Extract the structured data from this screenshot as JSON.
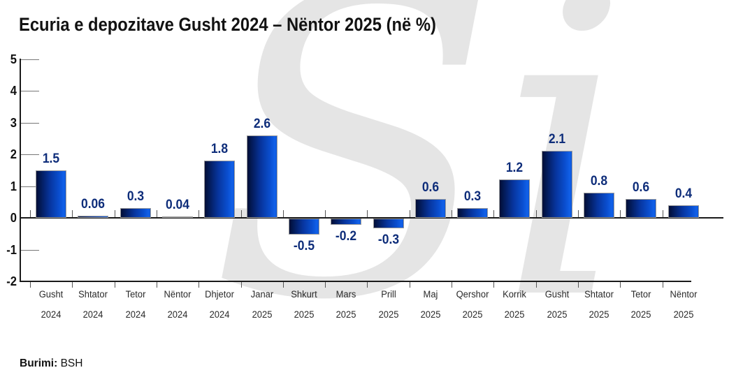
{
  "title": "Ecuria e depozitave Gusht 2024 – Nëntor 2025 (në %)",
  "watermark_text": "Si",
  "source": {
    "label": "Burimi:",
    "value": "BSH"
  },
  "colors": {
    "bar_gradient_dark": "#010e36",
    "bar_gradient_light": "#1161ea",
    "value_label": "#0e2d7a",
    "axis": "#1a1a1a",
    "watermark": "#e5e5e5",
    "background": "#ffffff"
  },
  "chart_data": {
    "type": "bar",
    "title": "Ecuria e depozitave Gusht 2024 – Nëntor 2025 (në %)",
    "xlabel": "",
    "ylabel": "",
    "ylim": [
      -2,
      5
    ],
    "y_ticks": [
      5,
      4,
      3,
      2,
      1,
      0,
      -1,
      -2
    ],
    "grid": false,
    "legend": "none",
    "categories": [
      {
        "month": "Gusht",
        "year": "2024"
      },
      {
        "month": "Shtator",
        "year": "2024"
      },
      {
        "month": "Tetor",
        "year": "2024"
      },
      {
        "month": "Nëntor",
        "year": "2024"
      },
      {
        "month": "Dhjetor",
        "year": "2024"
      },
      {
        "month": "Janar",
        "year": "2025"
      },
      {
        "month": "Shkurt",
        "year": "2025"
      },
      {
        "month": "Mars",
        "year": "2025"
      },
      {
        "month": "Prill",
        "year": "2025"
      },
      {
        "month": "Maj",
        "year": "2025"
      },
      {
        "month": "Qershor",
        "year": "2025"
      },
      {
        "month": "Korrik",
        "year": "2025"
      },
      {
        "month": "Gusht",
        "year": "2025"
      },
      {
        "month": "Shtator",
        "year": "2025"
      },
      {
        "month": "Tetor",
        "year": "2025"
      },
      {
        "month": "Nëntor",
        "year": "2025"
      }
    ],
    "values": [
      1.5,
      0.06,
      0.3,
      0.04,
      1.8,
      2.6,
      -0.5,
      -0.2,
      -0.3,
      0.6,
      0.3,
      1.2,
      2.1,
      0.8,
      0.6,
      0.4
    ],
    "value_labels": [
      "1.5",
      "0.06",
      "0.3",
      "0.04",
      "1.8",
      "2.6",
      "-0.5",
      "-0.2",
      "-0.3",
      "0.6",
      "0.3",
      "1.2",
      "2.1",
      "0.8",
      "0.6",
      "0.4"
    ]
  }
}
